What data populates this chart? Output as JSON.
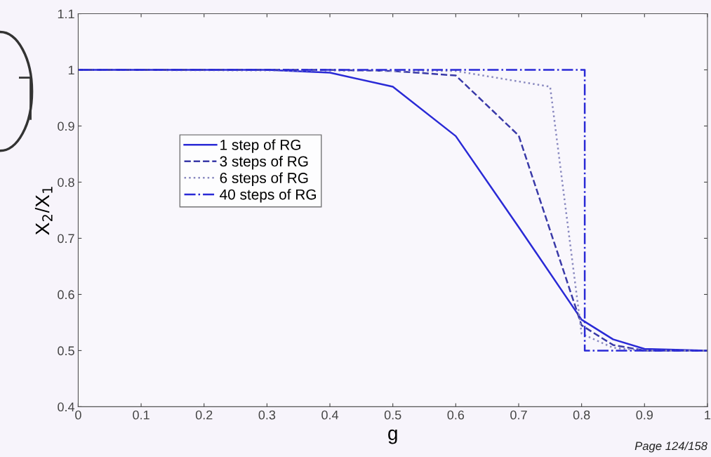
{
  "chart_data": {
    "type": "line",
    "xlabel": "g",
    "ylabel": "X$_{2}$/X$_{1}$",
    "x": [
      0,
      0.1,
      0.2,
      0.3,
      0.4,
      0.5,
      0.6,
      0.7,
      0.8,
      0.85,
      0.9,
      1
    ],
    "series": [
      {
        "name": "1 step of RG",
        "color": "#2a2ad6",
        "line_style": "solid",
        "values": [
          1,
          1,
          1,
          1,
          0.995,
          0.97,
          0.882,
          0.72,
          0.555,
          0.52,
          0.503,
          0.5
        ]
      },
      {
        "name": "3 steps of RG",
        "color": "#3a3aa8",
        "line_style": "dashed",
        "values": [
          1,
          1,
          1,
          1,
          1,
          0.998,
          0.99,
          0.883,
          0.545,
          0.51,
          0.5,
          0.5
        ]
      },
      {
        "name": "6 steps of RG",
        "color": "#8a8ac0",
        "line_style": "dotted",
        "x": [
          0,
          0.6,
          0.75,
          0.8,
          0.85,
          0.9,
          1
        ],
        "values": [
          1,
          0.998,
          0.97,
          0.53,
          0.505,
          0.5,
          0.5
        ]
      },
      {
        "name": "40 steps of RG",
        "color": "#2a2ad6",
        "line_style": "dashdot",
        "x": [
          0,
          0.2,
          0.4,
          0.6,
          0.805,
          0.805,
          0.9,
          1
        ],
        "values": [
          1,
          1,
          1,
          1,
          1,
          0.5,
          0.5,
          0.5
        ]
      }
    ],
    "xlim": [
      0,
      1
    ],
    "xticks": [
      0,
      0.1,
      0.2,
      0.3,
      0.4,
      0.5,
      0.6,
      0.7,
      0.8,
      0.9,
      1
    ],
    "ylim": [
      0.4,
      1.1
    ],
    "yticks": [
      0.4,
      0.5,
      0.6,
      0.7,
      0.8,
      0.9,
      1,
      1.1
    ],
    "grid": false,
    "legend": "center left",
    "annotations": [
      "Page 124/158"
    ]
  }
}
